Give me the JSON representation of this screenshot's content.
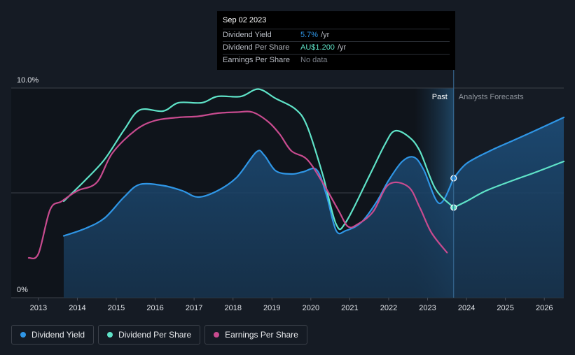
{
  "chart_data": {
    "type": "line",
    "title": "",
    "xlabel": "",
    "ylabel": "",
    "x_ticks": [
      "2013",
      "2014",
      "2015",
      "2016",
      "2017",
      "2018",
      "2019",
      "2020",
      "2021",
      "2022",
      "2023",
      "2024",
      "2025",
      "2026"
    ],
    "y_ticks": [
      "0%",
      "10.0%"
    ],
    "ylim": [
      0,
      10.0
    ],
    "xlim": [
      2012.3,
      2026.5
    ],
    "regions": {
      "past_label": "Past",
      "forecast_label": "Analysts Forecasts",
      "divider_x": 2023.67
    },
    "series": [
      {
        "name": "Dividend Yield",
        "color": "#2f96e6",
        "filled": true,
        "points": [
          [
            2013.65,
            2.95
          ],
          [
            2014.2,
            3.3
          ],
          [
            2014.7,
            3.8
          ],
          [
            2015.2,
            4.8
          ],
          [
            2015.6,
            5.4
          ],
          [
            2016.2,
            5.35
          ],
          [
            2016.7,
            5.1
          ],
          [
            2017.1,
            4.8
          ],
          [
            2017.6,
            5.1
          ],
          [
            2018.1,
            5.75
          ],
          [
            2018.6,
            6.95
          ],
          [
            2018.8,
            6.8
          ],
          [
            2019.1,
            6.05
          ],
          [
            2019.5,
            5.9
          ],
          [
            2019.8,
            6.0
          ],
          [
            2020.15,
            6.1
          ],
          [
            2020.4,
            4.9
          ],
          [
            2020.65,
            3.2
          ],
          [
            2020.9,
            3.2
          ],
          [
            2021.3,
            3.6
          ],
          [
            2021.7,
            4.6
          ],
          [
            2022.0,
            5.6
          ],
          [
            2022.35,
            6.5
          ],
          [
            2022.65,
            6.7
          ],
          [
            2022.9,
            6.1
          ],
          [
            2023.3,
            4.5
          ],
          [
            2023.67,
            5.7
          ]
        ],
        "forecast": [
          [
            2023.67,
            5.7
          ],
          [
            2024.0,
            6.4
          ],
          [
            2024.6,
            7.0
          ],
          [
            2025.2,
            7.5
          ],
          [
            2025.8,
            8.0
          ],
          [
            2026.5,
            8.6
          ]
        ]
      },
      {
        "name": "Dividend Per Share",
        "color": "#5fe3c8",
        "filled": false,
        "points": [
          [
            2013.65,
            4.6
          ],
          [
            2014.2,
            5.6
          ],
          [
            2014.7,
            6.6
          ],
          [
            2015.2,
            8.0
          ],
          [
            2015.6,
            8.95
          ],
          [
            2016.2,
            8.9
          ],
          [
            2016.6,
            9.3
          ],
          [
            2017.2,
            9.3
          ],
          [
            2017.6,
            9.6
          ],
          [
            2018.2,
            9.6
          ],
          [
            2018.65,
            9.95
          ],
          [
            2019.1,
            9.5
          ],
          [
            2019.6,
            9.0
          ],
          [
            2019.9,
            8.2
          ],
          [
            2020.3,
            5.9
          ],
          [
            2020.65,
            3.5
          ],
          [
            2020.9,
            3.6
          ],
          [
            2021.5,
            5.8
          ],
          [
            2021.9,
            7.3
          ],
          [
            2022.15,
            7.95
          ],
          [
            2022.5,
            7.7
          ],
          [
            2022.8,
            7.0
          ],
          [
            2023.2,
            5.2
          ],
          [
            2023.67,
            4.3
          ]
        ],
        "forecast": [
          [
            2023.67,
            4.3
          ],
          [
            2024.0,
            4.6
          ],
          [
            2024.5,
            5.1
          ],
          [
            2025.2,
            5.6
          ],
          [
            2025.8,
            6.0
          ],
          [
            2026.5,
            6.5
          ]
        ]
      },
      {
        "name": "Earnings Per Share",
        "color": "#c84b8f",
        "filled": false,
        "points": [
          [
            2012.75,
            1.9
          ],
          [
            2013.0,
            2.1
          ],
          [
            2013.3,
            4.2
          ],
          [
            2013.6,
            4.6
          ],
          [
            2014.0,
            5.1
          ],
          [
            2014.5,
            5.5
          ],
          [
            2014.9,
            6.9
          ],
          [
            2015.5,
            8.0
          ],
          [
            2016.0,
            8.45
          ],
          [
            2016.6,
            8.6
          ],
          [
            2017.1,
            8.65
          ],
          [
            2017.6,
            8.8
          ],
          [
            2018.1,
            8.85
          ],
          [
            2018.5,
            8.85
          ],
          [
            2018.9,
            8.4
          ],
          [
            2019.2,
            7.8
          ],
          [
            2019.5,
            7.0
          ],
          [
            2019.9,
            6.6
          ],
          [
            2020.3,
            5.5
          ],
          [
            2020.7,
            4.2
          ],
          [
            2020.95,
            3.4
          ],
          [
            2021.2,
            3.5
          ],
          [
            2021.6,
            4.1
          ],
          [
            2022.0,
            5.4
          ],
          [
            2022.5,
            5.3
          ],
          [
            2022.8,
            4.3
          ],
          [
            2023.1,
            3.1
          ],
          [
            2023.5,
            2.15
          ]
        ],
        "forecast": []
      }
    ],
    "highlight": {
      "date": "Sep 02 2023",
      "x": 2023.67,
      "rows": [
        {
          "label": "Dividend Yield",
          "value": "5.7%",
          "unit": "/yr",
          "color": "#2f96e6"
        },
        {
          "label": "Dividend Per Share",
          "value": "AU$1.200",
          "unit": "/yr",
          "color": "#5fe3c8"
        },
        {
          "label": "Earnings Per Share",
          "value": "No data",
          "unit": "",
          "color": "#7a7f88"
        }
      ]
    },
    "legend": {
      "placement": "bottom-left",
      "items": [
        {
          "label": "Dividend Yield",
          "color": "#2f96e6"
        },
        {
          "label": "Dividend Per Share",
          "color": "#5fe3c8"
        },
        {
          "label": "Earnings Per Share",
          "color": "#c84b8f"
        }
      ]
    }
  }
}
